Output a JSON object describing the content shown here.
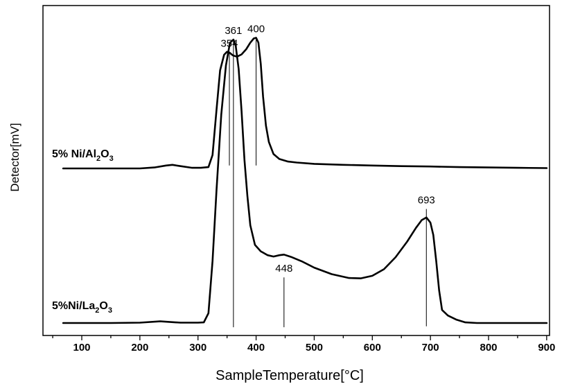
{
  "chart_data": {
    "type": "line",
    "xlabel": "SampleTemperature[°C]",
    "ylabel": "Detector[mV]",
    "xlim": [
      40,
      900
    ],
    "ylim": [
      0,
      1
    ],
    "xticks": [
      100,
      200,
      300,
      400,
      500,
      600,
      700,
      800,
      900
    ],
    "grid": false,
    "series": [
      {
        "name": "5% Ni/Al2O3",
        "label_parts": [
          {
            "text": "5% Ni/Al",
            "sub": false
          },
          {
            "text": "2",
            "sub": true
          },
          {
            "text": "O",
            "sub": false
          },
          {
            "text": "3",
            "sub": true
          }
        ],
        "x": [
          68,
          150,
          200,
          225,
          245,
          256,
          270,
          290,
          305,
          318,
          325,
          332,
          338,
          345,
          350,
          354,
          360,
          367,
          375,
          383,
          390,
          396,
          400,
          404,
          408,
          412,
          417,
          422,
          430,
          440,
          455,
          470,
          500,
          550,
          600,
          650,
          700,
          750,
          800,
          850,
          900
        ],
        "y": [
          0.519,
          0.519,
          0.519,
          0.522,
          0.528,
          0.53,
          0.526,
          0.521,
          0.521,
          0.523,
          0.56,
          0.7,
          0.82,
          0.868,
          0.877,
          0.875,
          0.866,
          0.862,
          0.869,
          0.885,
          0.905,
          0.918,
          0.92,
          0.905,
          0.84,
          0.74,
          0.65,
          0.6,
          0.563,
          0.548,
          0.54,
          0.537,
          0.533,
          0.53,
          0.528,
          0.526,
          0.525,
          0.523,
          0.522,
          0.521,
          0.52
        ]
      },
      {
        "name": "5%Ni/La2O3",
        "label_parts": [
          {
            "text": "5%Ni/La",
            "sub": false
          },
          {
            "text": "2",
            "sub": true
          },
          {
            "text": "O",
            "sub": false
          },
          {
            "text": "3",
            "sub": true
          }
        ],
        "x": [
          68,
          150,
          200,
          235,
          270,
          300,
          310,
          318,
          325,
          332,
          340,
          348,
          355,
          361,
          365,
          370,
          375,
          380,
          385,
          390,
          398,
          408,
          420,
          430,
          440,
          448,
          460,
          480,
          500,
          530,
          560,
          580,
          600,
          620,
          640,
          660,
          675,
          685,
          693,
          700,
          705,
          710,
          715,
          720,
          730,
          745,
          760,
          780,
          800,
          850,
          900
        ],
        "y": [
          0.01,
          0.01,
          0.011,
          0.015,
          0.011,
          0.011,
          0.012,
          0.04,
          0.2,
          0.42,
          0.65,
          0.8,
          0.87,
          0.88,
          0.86,
          0.79,
          0.66,
          0.51,
          0.4,
          0.31,
          0.25,
          0.23,
          0.218,
          0.214,
          0.218,
          0.22,
          0.213,
          0.198,
          0.18,
          0.16,
          0.148,
          0.147,
          0.155,
          0.175,
          0.212,
          0.26,
          0.302,
          0.326,
          0.334,
          0.318,
          0.28,
          0.2,
          0.11,
          0.05,
          0.033,
          0.02,
          0.012,
          0.01,
          0.01,
          0.01,
          0.01
        ]
      }
    ],
    "peak_markers": [
      {
        "label": "354",
        "x": 354,
        "y_from": 0.528,
        "y_to": 0.875
      },
      {
        "label": "400",
        "x": 400,
        "y_from": 0.528,
        "y_to": 0.92
      },
      {
        "label": "361",
        "x": 361,
        "y_from": -0.003,
        "y_to": 0.88
      },
      {
        "label": "448",
        "x": 448,
        "y_from": -0.003,
        "y_to": 0.15
      },
      {
        "label": "693",
        "x": 693,
        "y_from": 0.0,
        "y_to": 0.36
      }
    ]
  }
}
